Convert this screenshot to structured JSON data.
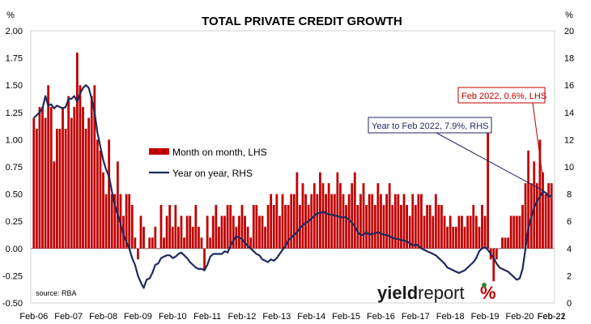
{
  "chart_data": {
    "type": "bar",
    "title": "TOTAL PRIVATE CREDIT GROWTH",
    "left_axis_unit": "%",
    "right_axis_unit": "%",
    "left_ylim": [
      -0.5,
      2.0
    ],
    "left_ticks": [
      "2.00",
      "1.75",
      "1.50",
      "1.25",
      "1.00",
      "0.75",
      "0.50",
      "0.25",
      "0.00",
      "-0.25",
      "-0.50"
    ],
    "right_ylim": [
      0,
      20
    ],
    "right_ticks": [
      "20",
      "18",
      "16",
      "14",
      "12",
      "10",
      "8",
      "6",
      "4",
      "2",
      "0"
    ],
    "x_tick_labels": [
      "Feb-06",
      "Feb-07",
      "Feb-08",
      "Feb-09",
      "Feb-10",
      "Feb-11",
      "Feb-12",
      "Feb-13",
      "Feb-14",
      "Feb-15",
      "Feb-16",
      "Feb-17",
      "Feb-18",
      "Feb-19",
      "Feb-20",
      "Feb-21",
      "Feb-22"
    ],
    "grid": false,
    "legend_position": "left-middle",
    "series": [
      {
        "name": "Month on month, LHS",
        "kind": "bar",
        "axis": "left",
        "color": "#c00000",
        "values": [
          1.2,
          1.1,
          1.3,
          1.3,
          1.2,
          1.5,
          1.3,
          0.8,
          1.1,
          1.1,
          1.3,
          1.1,
          1.4,
          1.2,
          1.3,
          1.8,
          1.5,
          1.3,
          1.1,
          1.2,
          1.4,
          1.5,
          1.0,
          0.9,
          0.7,
          0.5,
          1.0,
          0.5,
          0.5,
          0.8,
          0.5,
          0.3,
          0.5,
          0.5,
          0.4,
          0.1,
          -0.1,
          0.3,
          0.2,
          0.0,
          0.1,
          0.1,
          0.2,
          0.0,
          0.4,
          0.1,
          0.3,
          0.4,
          0.2,
          0.4,
          0.2,
          0.3,
          0.1,
          0.3,
          0.3,
          0.2,
          0.4,
          0.2,
          0.1,
          -0.2,
          0.3,
          0.1,
          0.3,
          0.4,
          0.2,
          0.3,
          0.3,
          0.4,
          0.4,
          0.3,
          0.2,
          0.3,
          0.4,
          0.3,
          0.2,
          0.1,
          0.4,
          0.4,
          0.3,
          0.3,
          0.2,
          0.4,
          0.5,
          0.4,
          0.5,
          0.3,
          0.5,
          0.4,
          0.4,
          0.5,
          0.5,
          0.7,
          0.4,
          0.6,
          0.5,
          0.4,
          0.5,
          0.6,
          0.5,
          0.7,
          0.6,
          0.5,
          0.6,
          0.5,
          0.5,
          0.7,
          0.6,
          0.5,
          0.4,
          0.5,
          0.6,
          0.7,
          0.4,
          0.5,
          0.6,
          0.4,
          0.5,
          0.5,
          0.4,
          0.6,
          0.5,
          0.4,
          0.5,
          0.6,
          0.4,
          0.5,
          0.5,
          0.4,
          0.5,
          0.4,
          0.3,
          0.5,
          0.4,
          0.5,
          0.5,
          0.3,
          0.4,
          0.4,
          0.3,
          0.5,
          0.4,
          0.4,
          0.3,
          0.2,
          0.3,
          0.2,
          0.2,
          0.3,
          0.3,
          0.2,
          0.3,
          0.3,
          0.4,
          0.3,
          0.2,
          0.4,
          0.3,
          1.1,
          -0.1,
          -0.3,
          -0.1,
          0.0,
          0.1,
          0.1,
          0.1,
          0.3,
          0.3,
          0.3,
          0.3,
          0.4,
          0.6,
          0.9,
          0.6,
          0.8,
          0.6,
          1.0,
          0.7,
          0.5,
          0.6,
          0.6
        ]
      },
      {
        "name": "Year on year, RHS",
        "kind": "line",
        "axis": "right",
        "color": "#1f2a5e",
        "values": [
          13.6,
          13.8,
          14.0,
          14.3,
          15.2,
          14.5,
          14.6,
          14.3,
          14.5,
          14.4,
          14.3,
          14.4,
          15.0,
          15.0,
          15.2,
          14.8,
          15.4,
          15.8,
          16.0,
          15.8,
          15.0,
          14.0,
          12.5,
          11.5,
          10.5,
          9.8,
          9.3,
          8.2,
          7.2,
          6.5,
          5.8,
          5.0,
          4.5,
          4.0,
          3.3,
          2.8,
          2.0,
          1.5,
          1.1,
          1.7,
          1.8,
          2.2,
          2.8,
          2.9,
          3.3,
          3.4,
          3.5,
          3.5,
          3.3,
          3.4,
          3.6,
          3.7,
          3.5,
          3.3,
          3.0,
          2.8,
          2.6,
          2.5,
          2.5,
          2.4,
          2.8,
          3.4,
          3.6,
          3.6,
          3.6,
          3.6,
          3.8,
          3.7,
          4.2,
          4.6,
          4.9,
          4.8,
          4.7,
          4.4,
          4.2,
          4.0,
          3.8,
          3.6,
          3.5,
          3.2,
          3.1,
          3.0,
          3.2,
          3.1,
          3.3,
          3.6,
          3.9,
          4.2,
          4.6,
          4.8,
          5.0,
          5.2,
          5.5,
          5.7,
          5.9,
          6.0,
          6.2,
          6.4,
          6.6,
          6.6,
          6.7,
          6.6,
          6.5,
          6.5,
          6.4,
          6.4,
          6.3,
          6.3,
          6.3,
          6.1,
          5.9,
          5.6,
          5.2,
          5.0,
          5.0,
          5.2,
          5.0,
          5.1,
          5.1,
          5.2,
          5.1,
          5.0,
          5.0,
          4.9,
          4.8,
          4.7,
          4.7,
          4.6,
          4.6,
          4.5,
          4.4,
          4.2,
          4.3,
          4.2,
          4.0,
          3.9,
          3.8,
          3.7,
          3.6,
          3.5,
          3.3,
          3.1,
          2.9,
          2.6,
          2.5,
          2.4,
          2.3,
          2.2,
          2.3,
          2.4,
          2.6,
          2.8,
          3.0,
          3.3,
          3.8,
          4.0,
          4.1,
          3.9,
          3.6,
          3.3,
          2.9,
          2.6,
          2.5,
          2.4,
          2.3,
          2.1,
          1.9,
          1.7,
          1.8,
          2.5,
          4.0,
          5.5,
          6.3,
          7.0,
          7.5,
          7.8,
          8.2,
          8.1,
          7.8,
          7.9
        ]
      }
    ],
    "annotations": [
      {
        "text": "Feb 2022, 0.6%, LHS",
        "color": "#c00000"
      },
      {
        "text": "Year to Feb 2022, 7.9%, RHS",
        "color": "#1f2a5e"
      }
    ],
    "source_note": "source: RBA",
    "brand": {
      "text_yield": "yield",
      "text_report": "report",
      "symbol": "%",
      "symbol_color": "#c00000",
      "symbol_accent": "#2e8b3a"
    }
  }
}
